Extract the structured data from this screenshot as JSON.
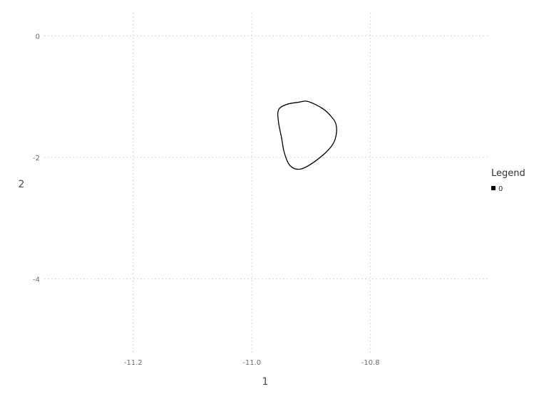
{
  "chart_data": {
    "type": "line",
    "title": "",
    "xlabel": "1",
    "ylabel": "2",
    "xlim": [
      -11.35,
      -10.6
    ],
    "ylim": [
      -5.25,
      0.38
    ],
    "x_ticks": [
      -11.2,
      -11.0,
      -10.8
    ],
    "x_tick_labels": [
      "-11.2",
      "-11.0",
      "-10.8"
    ],
    "y_ticks": [
      0,
      -2,
      -4
    ],
    "y_tick_labels": [
      "0",
      "-2",
      "-4"
    ],
    "grid": true,
    "legend": {
      "title": "Legend",
      "position": "right",
      "entries": [
        {
          "label": "0",
          "color": "#000000"
        }
      ]
    },
    "series": [
      {
        "name": "0",
        "color": "#000000",
        "closed": true,
        "x": [
          -10.955,
          -10.942,
          -10.92,
          -10.905,
          -10.88,
          -10.865,
          -10.858,
          -10.858,
          -10.866,
          -10.89,
          -10.917,
          -10.935,
          -10.945,
          -10.95,
          -10.955
        ],
        "y": [
          -1.22,
          -1.13,
          -1.09,
          -1.08,
          -1.2,
          -1.34,
          -1.46,
          -1.64,
          -1.82,
          -2.04,
          -2.19,
          -2.14,
          -1.93,
          -1.67,
          -1.42
        ]
      }
    ]
  }
}
